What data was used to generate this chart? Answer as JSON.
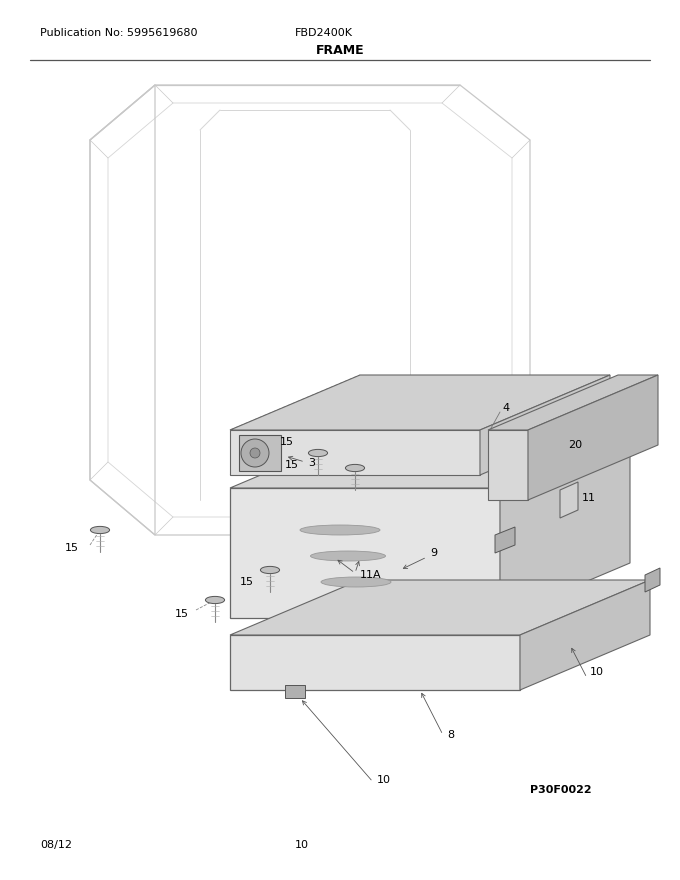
{
  "title": "FRAME",
  "pub_no": "Publication No: 5995619680",
  "model": "FBD2400K",
  "date": "08/12",
  "page": "10",
  "diagram_code": "P30F0022",
  "bg_color": "#ffffff",
  "text_color": "#000000",
  "line_gray": "#aaaaaa",
  "line_dark": "#666666",
  "fill_light": "#e8e8e8",
  "fill_mid": "#d8d8d8",
  "fill_dark": "#c8c8c8"
}
